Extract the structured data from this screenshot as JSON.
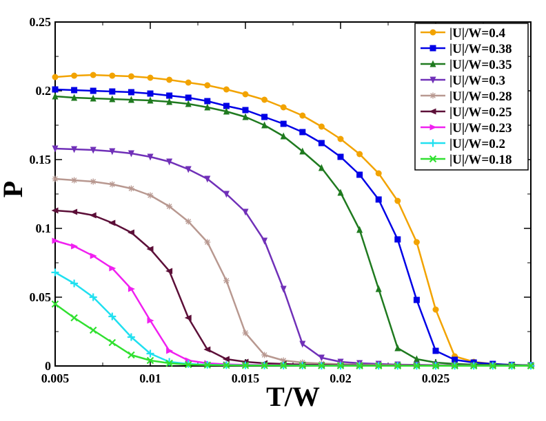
{
  "chart_data": {
    "type": "line",
    "title": "",
    "xlabel": "T/W",
    "ylabel": "P",
    "xlim": [
      0.005,
      0.03
    ],
    "ylim": [
      0,
      0.25
    ],
    "xticks": [
      "0.005",
      "0.01",
      "0.015",
      "0.02",
      "0.025"
    ],
    "yticks": [
      "0",
      "0.05",
      "0.1",
      "0.15",
      "0.2",
      "0.25"
    ],
    "grid": false,
    "legend_position": "top-right",
    "x": [
      0.005,
      0.006,
      0.007,
      0.008,
      0.009,
      0.01,
      0.011,
      0.012,
      0.013,
      0.014,
      0.015,
      0.016,
      0.017,
      0.018,
      0.019,
      0.02,
      0.021,
      0.022,
      0.023,
      0.024,
      0.025,
      0.026,
      0.027,
      0.028,
      0.029,
      0.03
    ],
    "series": [
      {
        "name": "|U|/W=0.4",
        "color": "#f2a300",
        "marker": "circle",
        "values": [
          0.21,
          0.211,
          0.2115,
          0.211,
          0.2105,
          0.2095,
          0.208,
          0.206,
          0.204,
          0.201,
          0.1975,
          0.1935,
          0.188,
          0.182,
          0.174,
          0.165,
          0.154,
          0.14,
          0.12,
          0.09,
          0.041,
          0.007,
          0.003,
          0.0015,
          0.0008,
          0.0005
        ]
      },
      {
        "name": "|U|/W=0.38",
        "color": "#0000e6",
        "marker": "square",
        "values": [
          0.201,
          0.2005,
          0.2,
          0.1995,
          0.199,
          0.198,
          0.1965,
          0.195,
          0.1925,
          0.189,
          0.186,
          0.181,
          0.176,
          0.17,
          0.162,
          0.152,
          0.139,
          0.121,
          0.092,
          0.048,
          0.011,
          0.0045,
          0.0025,
          0.0015,
          0.0008,
          0.0005
        ]
      },
      {
        "name": "|U|/W=0.35",
        "color": "#1f7a1f",
        "marker": "triangle-up",
        "values": [
          0.196,
          0.195,
          0.1945,
          0.194,
          0.1935,
          0.193,
          0.192,
          0.1905,
          0.188,
          0.185,
          0.181,
          0.175,
          0.167,
          0.156,
          0.144,
          0.126,
          0.099,
          0.056,
          0.013,
          0.005,
          0.0025,
          0.0015,
          0.001,
          0.0008,
          0.0006,
          0.0005
        ]
      },
      {
        "name": "|U|/W=0.3",
        "color": "#7030b8",
        "marker": "triangle-down",
        "values": [
          0.158,
          0.1575,
          0.157,
          0.156,
          0.1545,
          0.152,
          0.1485,
          0.143,
          0.136,
          0.125,
          0.112,
          0.091,
          0.056,
          0.016,
          0.006,
          0.003,
          0.002,
          0.0015,
          0.001,
          0.0008,
          0.0006,
          0.0005,
          0.0004,
          0.0003,
          0.0003,
          0.0002
        ]
      },
      {
        "name": "|U|/W=0.28",
        "color": "#b89890",
        "marker": "star",
        "values": [
          0.136,
          0.135,
          0.134,
          0.132,
          0.129,
          0.124,
          0.116,
          0.105,
          0.09,
          0.062,
          0.024,
          0.008,
          0.004,
          0.0025,
          0.0018,
          0.0013,
          0.001,
          0.0008,
          0.0006,
          0.0005,
          0.0004,
          0.0003,
          0.0003,
          0.0002,
          0.0002,
          0.0002
        ]
      },
      {
        "name": "|U|/W=0.25",
        "color": "#5c0f38",
        "marker": "triangle-left",
        "values": [
          0.113,
          0.112,
          0.1095,
          0.104,
          0.097,
          0.085,
          0.069,
          0.035,
          0.012,
          0.005,
          0.003,
          0.002,
          0.0015,
          0.001,
          0.0008,
          0.0006,
          0.0005,
          0.0004,
          0.0003,
          0.0003,
          0.0002,
          0.0002,
          0.0002,
          0.0001,
          0.0001,
          0.0001
        ]
      },
      {
        "name": "|U|/W=0.23",
        "color": "#f020f0",
        "marker": "triangle-right",
        "values": [
          0.091,
          0.087,
          0.08,
          0.071,
          0.056,
          0.033,
          0.011,
          0.004,
          0.002,
          0.0012,
          0.0008,
          0.0006,
          0.0005,
          0.0004,
          0.0003,
          0.0003,
          0.0002,
          0.0002,
          0.0002,
          0.0001,
          0.0001,
          0.0001,
          0.0001,
          0.0001,
          0.0001,
          0.0001
        ]
      },
      {
        "name": "|U|/W=0.2",
        "color": "#20e0f0",
        "marker": "plus",
        "values": [
          0.068,
          0.06,
          0.05,
          0.036,
          0.021,
          0.009,
          0.003,
          0.0015,
          0.0009,
          0.0006,
          0.0005,
          0.0004,
          0.0003,
          0.0003,
          0.0002,
          0.0002,
          0.0002,
          0.0001,
          0.0001,
          0.0001,
          0.0001,
          0.0001,
          0.0001,
          0.0001,
          0.0001,
          0.0001
        ]
      },
      {
        "name": "|U|/W=0.18",
        "color": "#30e030",
        "marker": "x",
        "values": [
          0.045,
          0.035,
          0.026,
          0.017,
          0.008,
          0.004,
          0.002,
          0.001,
          0.0007,
          0.0005,
          0.0004,
          0.0003,
          0.0003,
          0.0002,
          0.0002,
          0.0002,
          0.0001,
          0.0001,
          0.0001,
          0.0001,
          0.0001,
          0.0001,
          0.0001,
          0.0001,
          0.0001,
          0.0001
        ]
      }
    ]
  }
}
